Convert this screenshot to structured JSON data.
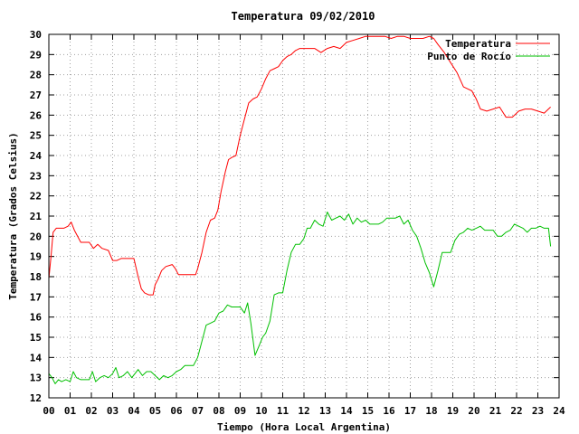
{
  "chart_data": {
    "type": "line",
    "title": "Temperatura 09/02/2010",
    "xlabel": "Tiempo (Hora Local Argentina)",
    "ylabel": "Temperatura (Grados Celsius)",
    "xlim": [
      0,
      24
    ],
    "ylim": [
      12,
      30
    ],
    "xticks": [
      "00",
      "01",
      "02",
      "03",
      "04",
      "05",
      "06",
      "07",
      "08",
      "09",
      "10",
      "11",
      "12",
      "13",
      "14",
      "15",
      "16",
      "17",
      "18",
      "19",
      "20",
      "21",
      "22",
      "23",
      "24"
    ],
    "yticks": [
      12,
      13,
      14,
      15,
      16,
      17,
      18,
      19,
      20,
      21,
      22,
      23,
      24,
      25,
      26,
      27,
      28,
      29,
      30
    ],
    "grid": true,
    "legend": "top-right",
    "series": [
      {
        "name": "Temperatura",
        "color": "#ff0000",
        "x": [
          0.0,
          0.1,
          0.2,
          0.35,
          0.5,
          0.7,
          0.9,
          1.05,
          1.2,
          1.5,
          1.9,
          2.1,
          2.3,
          2.5,
          2.8,
          3.0,
          3.2,
          3.4,
          3.7,
          4.0,
          4.2,
          4.35,
          4.5,
          4.7,
          4.9,
          5.0,
          5.15,
          5.3,
          5.5,
          5.8,
          5.95,
          6.1,
          6.3,
          6.6,
          6.9,
          7.0,
          7.2,
          7.4,
          7.6,
          7.8,
          7.95,
          8.1,
          8.3,
          8.45,
          8.6,
          8.8,
          9.0,
          9.2,
          9.4,
          9.6,
          9.8,
          10.0,
          10.2,
          10.4,
          10.6,
          10.8,
          11.0,
          11.2,
          11.4,
          11.6,
          11.8,
          12.0,
          12.2,
          12.5,
          12.8,
          13.1,
          13.4,
          13.7,
          14.0,
          14.3,
          14.6,
          14.9,
          15.2,
          15.5,
          15.8,
          16.1,
          16.4,
          16.7,
          17.0,
          17.3,
          17.6,
          17.9,
          18.1,
          18.3,
          18.6,
          18.9,
          19.2,
          19.5,
          19.7,
          19.9,
          20.1,
          20.3,
          20.6,
          20.9,
          21.2,
          21.5,
          21.8,
          22.1,
          22.4,
          22.7,
          23.0,
          23.3,
          23.6
        ],
        "values": [
          17.9,
          19.0,
          20.2,
          20.4,
          20.4,
          20.4,
          20.5,
          20.7,
          20.3,
          19.7,
          19.7,
          19.4,
          19.6,
          19.4,
          19.3,
          18.8,
          18.8,
          18.9,
          18.9,
          18.9,
          18.0,
          17.4,
          17.2,
          17.1,
          17.1,
          17.6,
          17.9,
          18.3,
          18.5,
          18.6,
          18.4,
          18.1,
          18.1,
          18.1,
          18.1,
          18.4,
          19.2,
          20.2,
          20.8,
          20.9,
          21.3,
          22.2,
          23.2,
          23.8,
          23.9,
          24.0,
          25.0,
          25.8,
          26.6,
          26.8,
          26.9,
          27.3,
          27.8,
          28.2,
          28.3,
          28.4,
          28.7,
          28.9,
          29.0,
          29.2,
          29.3,
          29.3,
          29.3,
          29.3,
          29.1,
          29.3,
          29.4,
          29.3,
          29.6,
          29.7,
          29.8,
          29.9,
          29.9,
          29.9,
          29.9,
          29.8,
          29.9,
          29.9,
          29.8,
          29.8,
          29.8,
          29.9,
          29.8,
          29.5,
          29.1,
          28.6,
          28.1,
          27.4,
          27.3,
          27.2,
          26.8,
          26.3,
          26.2,
          26.3,
          26.4,
          25.9,
          25.9,
          26.2,
          26.3,
          26.3,
          26.2,
          26.1,
          26.4
        ]
      },
      {
        "name": "Punto de Rocío",
        "color": "#00c000",
        "x": [
          0.0,
          0.15,
          0.3,
          0.45,
          0.6,
          0.8,
          1.0,
          1.15,
          1.3,
          1.5,
          1.7,
          1.9,
          2.05,
          2.2,
          2.4,
          2.6,
          2.8,
          3.0,
          3.15,
          3.3,
          3.5,
          3.7,
          3.9,
          4.05,
          4.2,
          4.4,
          4.6,
          4.8,
          5.0,
          5.2,
          5.4,
          5.6,
          5.8,
          6.0,
          6.2,
          6.4,
          6.6,
          6.8,
          7.0,
          7.2,
          7.4,
          7.6,
          7.8,
          8.0,
          8.2,
          8.4,
          8.6,
          8.8,
          9.0,
          9.2,
          9.35,
          9.5,
          9.7,
          9.9,
          10.05,
          10.2,
          10.4,
          10.6,
          10.8,
          11.0,
          11.2,
          11.4,
          11.6,
          11.8,
          12.0,
          12.15,
          12.3,
          12.5,
          12.7,
          12.9,
          13.1,
          13.3,
          13.5,
          13.7,
          13.9,
          14.1,
          14.3,
          14.5,
          14.7,
          14.9,
          15.1,
          15.3,
          15.5,
          15.7,
          15.9,
          16.1,
          16.3,
          16.5,
          16.7,
          16.9,
          17.1,
          17.3,
          17.5,
          17.7,
          17.9,
          18.1,
          18.3,
          18.5,
          18.7,
          18.9,
          19.1,
          19.3,
          19.5,
          19.7,
          19.9,
          20.1,
          20.3,
          20.5,
          20.7,
          20.9,
          21.1,
          21.3,
          21.5,
          21.7,
          21.9,
          22.1,
          22.3,
          22.5,
          22.7,
          22.9,
          23.1,
          23.3,
          23.5,
          23.6
        ],
        "values": [
          13.2,
          13.0,
          12.7,
          12.9,
          12.8,
          12.9,
          12.8,
          13.3,
          13.0,
          12.9,
          12.9,
          12.9,
          13.3,
          12.8,
          13.0,
          13.1,
          13.0,
          13.2,
          13.5,
          13.0,
          13.1,
          13.3,
          13.0,
          13.2,
          13.4,
          13.1,
          13.3,
          13.3,
          13.1,
          12.9,
          13.1,
          13.0,
          13.1,
          13.3,
          13.4,
          13.6,
          13.6,
          13.6,
          14.0,
          14.8,
          15.6,
          15.7,
          15.8,
          16.2,
          16.3,
          16.6,
          16.5,
          16.5,
          16.5,
          16.2,
          16.7,
          15.7,
          14.1,
          14.6,
          15.0,
          15.2,
          15.8,
          17.1,
          17.2,
          17.2,
          18.3,
          19.2,
          19.6,
          19.6,
          19.9,
          20.4,
          20.4,
          20.8,
          20.6,
          20.5,
          21.2,
          20.8,
          20.9,
          21.0,
          20.8,
          21.1,
          20.6,
          20.9,
          20.7,
          20.8,
          20.6,
          20.6,
          20.6,
          20.7,
          20.9,
          20.9,
          20.9,
          21.0,
          20.6,
          20.8,
          20.3,
          20.0,
          19.4,
          18.7,
          18.2,
          17.5,
          18.3,
          19.2,
          19.2,
          19.2,
          19.8,
          20.1,
          20.2,
          20.4,
          20.3,
          20.4,
          20.5,
          20.3,
          20.3,
          20.3,
          20.0,
          20.0,
          20.2,
          20.3,
          20.6,
          20.5,
          20.4,
          20.2,
          20.4,
          20.4,
          20.5,
          20.4,
          20.4,
          19.5
        ]
      }
    ]
  }
}
